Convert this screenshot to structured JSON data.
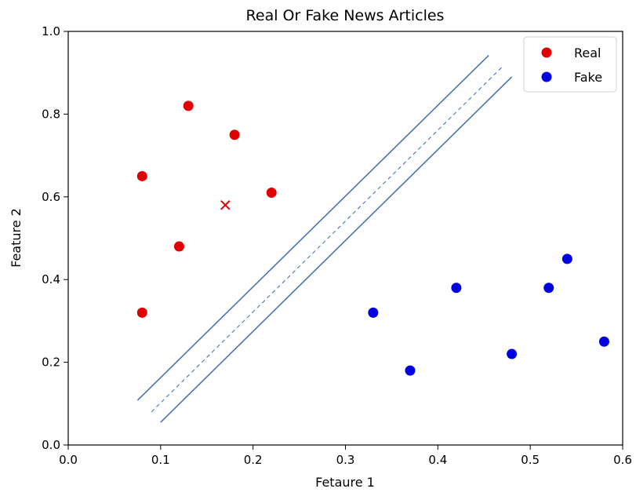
{
  "chart_data": {
    "type": "scatter",
    "title": "Real Or Fake News Articles",
    "xlabel": "Fetaure 1",
    "ylabel": "Feature 2",
    "xlim": [
      0.0,
      0.6
    ],
    "ylim": [
      0.0,
      1.0
    ],
    "x_ticks": [
      "0.0",
      "0.1",
      "0.2",
      "0.3",
      "0.4",
      "0.5",
      "0.6"
    ],
    "y_ticks": [
      "0.0",
      "0.2",
      "0.4",
      "0.6",
      "0.8",
      "1.0"
    ],
    "grid": false,
    "legend_position": "top-right",
    "series": [
      {
        "name": "Real",
        "color": "#e00000",
        "marker": "circle",
        "points": [
          {
            "x": 0.13,
            "y": 0.82
          },
          {
            "x": 0.18,
            "y": 0.75
          },
          {
            "x": 0.08,
            "y": 0.65
          },
          {
            "x": 0.22,
            "y": 0.61
          },
          {
            "x": 0.12,
            "y": 0.48
          },
          {
            "x": 0.08,
            "y": 0.32
          }
        ]
      },
      {
        "name": "Fake",
        "color": "#0000e0",
        "marker": "circle",
        "points": [
          {
            "x": 0.33,
            "y": 0.32
          },
          {
            "x": 0.37,
            "y": 0.18
          },
          {
            "x": 0.42,
            "y": 0.38
          },
          {
            "x": 0.48,
            "y": 0.22
          },
          {
            "x": 0.52,
            "y": 0.38
          },
          {
            "x": 0.54,
            "y": 0.45
          },
          {
            "x": 0.58,
            "y": 0.25
          }
        ]
      }
    ],
    "extra_points": [
      {
        "x": 0.17,
        "y": 0.58,
        "marker": "x",
        "color": "#e00000"
      }
    ],
    "lines": [
      {
        "kind": "margin-upper",
        "style": "solid",
        "color": "#4a74b5",
        "x": [
          0.075,
          0.455
        ],
        "y": [
          0.108,
          0.942
        ]
      },
      {
        "kind": "decision-boundary",
        "style": "dashed",
        "color": "#4a74b5",
        "x": [
          0.09,
          0.47
        ],
        "y": [
          0.08,
          0.915
        ]
      },
      {
        "kind": "margin-lower",
        "style": "solid",
        "color": "#4a74b5",
        "x": [
          0.1,
          0.48
        ],
        "y": [
          0.055,
          0.89
        ]
      }
    ]
  }
}
